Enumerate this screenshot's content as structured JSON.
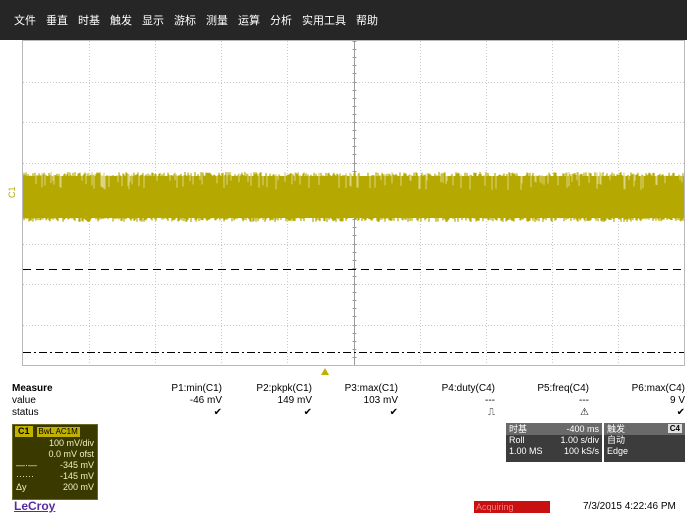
{
  "menu": [
    "文件",
    "垂直",
    "时基",
    "触发",
    "显示",
    "游标",
    "测量",
    "运算",
    "分析",
    "实用工具",
    "帮助"
  ],
  "channel_marker": "C1",
  "measure": {
    "labels": {
      "title": "Measure",
      "value": "value",
      "status": "status"
    },
    "params": [
      {
        "name": "P1:min(C1)",
        "value": "-46 mV",
        "status": "✔"
      },
      {
        "name": "P2:pkpk(C1)",
        "value": "149 mV",
        "status": "✔"
      },
      {
        "name": "P3:max(C1)",
        "value": "103 mV",
        "status": "✔"
      },
      {
        "name": "P4:duty(C4)",
        "value": "---",
        "status": "⎍"
      },
      {
        "name": "P5:freq(C4)",
        "value": "---",
        "status": "⚠"
      },
      {
        "name": "P6:max(C4)",
        "value": "9 V",
        "status": "✔"
      }
    ]
  },
  "channel_box": {
    "tag": "C1",
    "coupling": "BwL AC1M",
    "vdiv": "100 mV/div",
    "offset": "0.0 mV ofst",
    "cursor1": "-345 mV",
    "cursor2": "-145 mV",
    "delta_label": "Δy",
    "delta": "200 mV"
  },
  "timebase": {
    "title": "时基",
    "delay": "-400 ms",
    "mode": "Roll",
    "tdiv": "1.00 s/div",
    "samples": "1.00 MS",
    "rate": "100 kS/s"
  },
  "trigger": {
    "title": "触发",
    "source": "C4",
    "mode": "自动",
    "type": "Edge"
  },
  "footer": {
    "logo": "LeCroy",
    "status": "Acquiring",
    "datetime": "7/3/2015 4:22:46 PM"
  },
  "colors": {
    "trace": "#b5a800",
    "menubar": "#262626",
    "acquiring": "#c81010"
  }
}
